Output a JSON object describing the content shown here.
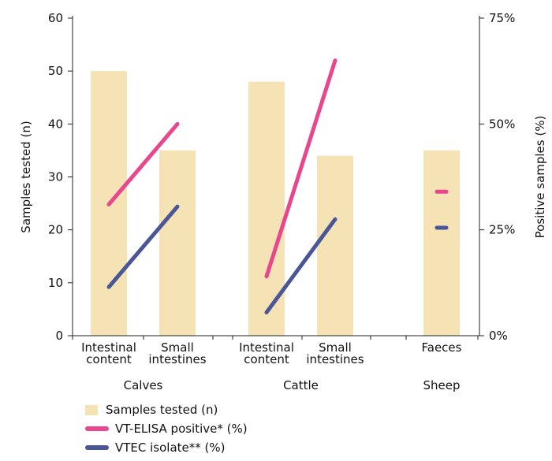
{
  "chart_data": {
    "type": "bar",
    "title": "",
    "groups": [
      {
        "label": "Calves",
        "categories": [
          "Intestinal\ncontent",
          "Small\nintestines"
        ]
      },
      {
        "label": "Cattle",
        "categories": [
          "Intestinal\ncontent",
          "Small\nintestines"
        ]
      },
      {
        "label": "Sheep",
        "categories": [
          "Faeces"
        ]
      }
    ],
    "categories": [
      "Calves – Intestinal content",
      "Calves – Small intestines",
      "Cattle – Intestinal content",
      "Cattle – Small intestines",
      "Sheep – Faeces"
    ],
    "ylabel_left": "Samples tested (n)",
    "ylabel_right": "Positive samples (%)",
    "ylim_left": [
      0,
      60
    ],
    "ylim_right": [
      0,
      75
    ],
    "yticks_left": [
      "0",
      "10",
      "20",
      "30",
      "40",
      "50",
      "60"
    ],
    "yticks_right": [
      "0%",
      "25%",
      "50%",
      "75%"
    ],
    "grid": false,
    "legend_position": "bottom-left",
    "series": [
      {
        "name": "Samples tested (n)",
        "type": "bar",
        "axis": "left",
        "color": "#f5e3b6",
        "values": [
          50,
          35,
          48,
          34,
          35
        ]
      },
      {
        "name": "VT-ELISA positive* (%)",
        "type": "line",
        "axis": "right",
        "color": "#e8478e",
        "values": [
          31,
          50,
          14,
          65,
          34
        ]
      },
      {
        "name": "VTEC isolate** (%)",
        "type": "line",
        "axis": "right",
        "color": "#4a5696",
        "values": [
          11.5,
          30.5,
          5.5,
          27.5,
          25.5
        ]
      }
    ],
    "line_segments": [
      [
        0,
        1
      ],
      [
        2,
        3
      ],
      [
        4,
        4
      ]
    ]
  }
}
